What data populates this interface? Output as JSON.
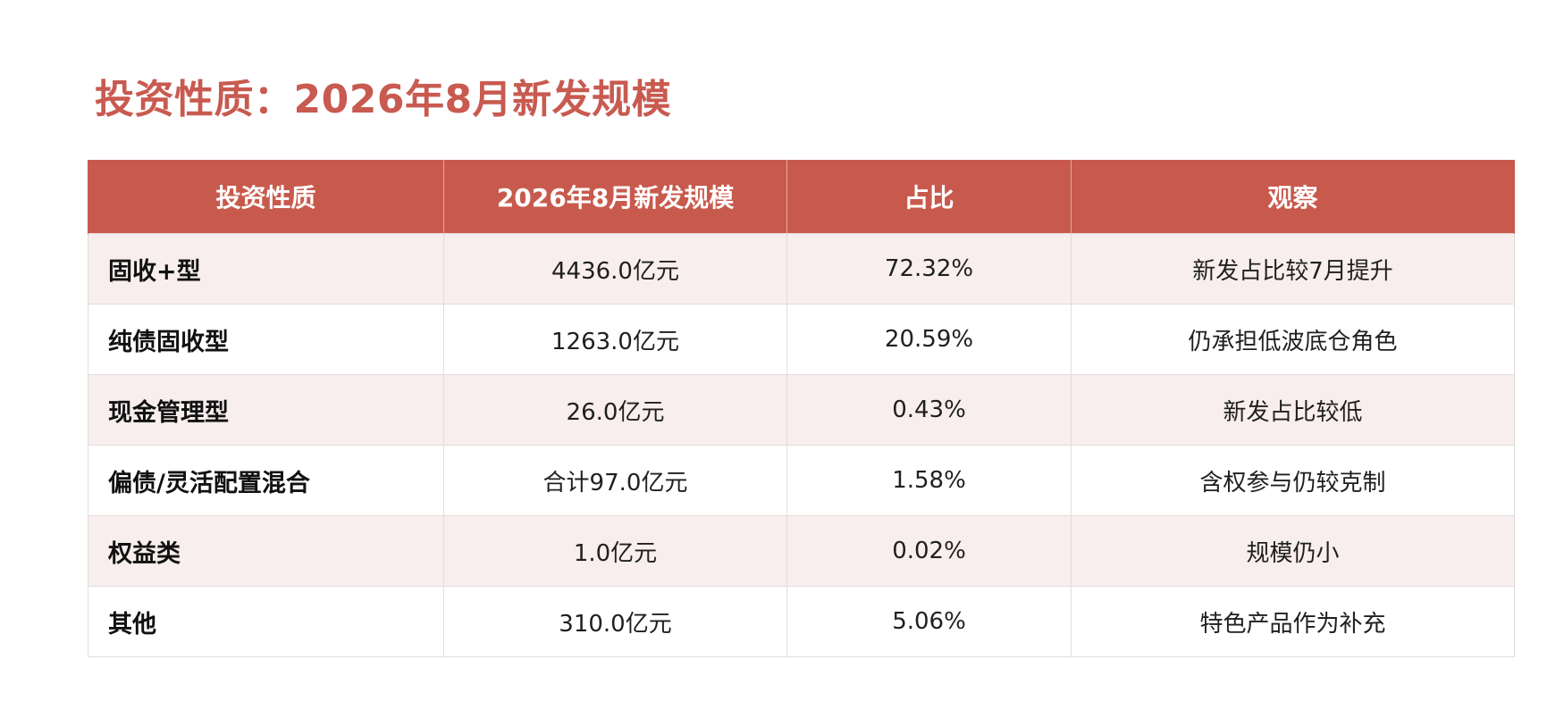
{
  "title": "投资性质：2026年8月新发规模",
  "table": {
    "headers": [
      "投资性质",
      "2026年8月新发规模",
      "占比",
      "观察"
    ],
    "rows": [
      {
        "type": "固收+型",
        "scale": "4436.0亿元",
        "ratio": "72.32%",
        "note": "新发占比较7月提升"
      },
      {
        "type": "纯债固收型",
        "scale": "1263.0亿元",
        "ratio": "20.59%",
        "note": "仍承担低波底仓角色"
      },
      {
        "type": "现金管理型",
        "scale": "26.0亿元",
        "ratio": "0.43%",
        "note": "新发占比较低"
      },
      {
        "type": "偏债/灵活配置混合",
        "scale": "合计97.0亿元",
        "ratio": "1.58%",
        "note": "含权参与仍较克制"
      },
      {
        "type": "权益类",
        "scale": "1.0亿元",
        "ratio": "0.02%",
        "note": "规模仍小"
      },
      {
        "type": "其他",
        "scale": "310.0亿元",
        "ratio": "5.06%",
        "note": "特色产品作为补充"
      }
    ]
  },
  "colors": {
    "accent": "#c85a4d",
    "title": "#c85a50",
    "stripe": "#f7eeed"
  }
}
